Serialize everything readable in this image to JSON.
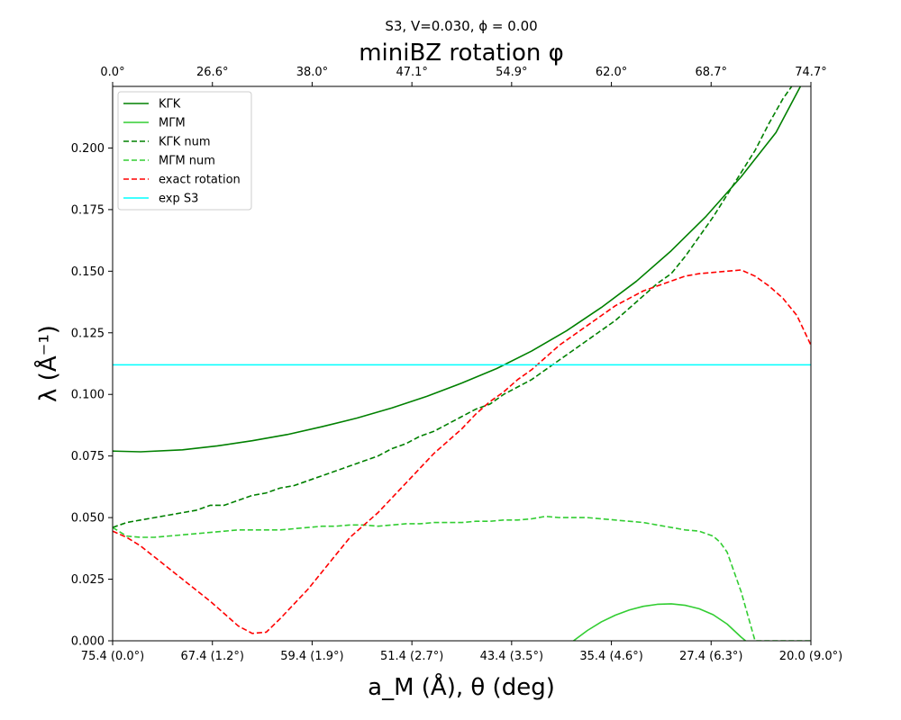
{
  "chart_data": {
    "type": "line",
    "suptitle": "S3, V=0.030, ϕ = 0.00",
    "title": "miniBZ rotation φ",
    "xlabel": "a_M (Å), θ (deg)",
    "ylabel": "λ (Å⁻¹)",
    "xlim": [
      0,
      100
    ],
    "ylim": [
      0,
      0.225
    ],
    "grid": false,
    "legend_position": "top-left",
    "x_ticks": [
      {
        "pos": 0,
        "label": "75.4 (0.0°)"
      },
      {
        "pos": 14.29,
        "label": "67.4 (1.2°)"
      },
      {
        "pos": 28.57,
        "label": "59.4 (1.9°)"
      },
      {
        "pos": 42.86,
        "label": "51.4 (2.7°)"
      },
      {
        "pos": 57.14,
        "label": "43.4 (3.5°)"
      },
      {
        "pos": 71.43,
        "label": "35.4 (4.6°)"
      },
      {
        "pos": 85.71,
        "label": "27.4 (6.3°)"
      },
      {
        "pos": 100,
        "label": "20.0 (9.0°)"
      }
    ],
    "top_ticks": [
      {
        "pos": 0,
        "label": "0.0°"
      },
      {
        "pos": 14.29,
        "label": "26.6°"
      },
      {
        "pos": 28.57,
        "label": "38.0°"
      },
      {
        "pos": 42.86,
        "label": "47.1°"
      },
      {
        "pos": 57.14,
        "label": "54.9°"
      },
      {
        "pos": 71.43,
        "label": "62.0°"
      },
      {
        "pos": 85.71,
        "label": "68.7°"
      },
      {
        "pos": 100,
        "label": "74.7°"
      }
    ],
    "y_ticks": [
      {
        "value": 0.0,
        "label": "0.000"
      },
      {
        "value": 0.025,
        "label": "0.025"
      },
      {
        "value": 0.05,
        "label": "0.050"
      },
      {
        "value": 0.075,
        "label": "0.075"
      },
      {
        "value": 0.1,
        "label": "0.100"
      },
      {
        "value": 0.125,
        "label": "0.125"
      },
      {
        "value": 0.15,
        "label": "0.150"
      },
      {
        "value": 0.175,
        "label": "0.175"
      },
      {
        "value": 0.2,
        "label": "0.200"
      }
    ],
    "series": [
      {
        "name": "KΓK",
        "color": "#008000",
        "style": "solid",
        "x": [
          0,
          4,
          10,
          15,
          20,
          25,
          30,
          35,
          40,
          45,
          50,
          55,
          60,
          65,
          70,
          75,
          80,
          85,
          90,
          95,
          98.5
        ],
        "y": [
          0.077,
          0.0767,
          0.0775,
          0.0791,
          0.0812,
          0.0837,
          0.0869,
          0.0904,
          0.0945,
          0.0992,
          0.1046,
          0.1105,
          0.1176,
          0.1258,
          0.1353,
          0.1459,
          0.1583,
          0.1723,
          0.1883,
          0.2063,
          0.225
        ]
      },
      {
        "name": "MΓM",
        "color": "#32cd32",
        "style": "solid",
        "x": [
          66,
          68,
          70,
          72,
          74,
          76,
          78,
          80,
          82,
          84,
          86,
          88,
          90,
          91.5
        ],
        "y": [
          0.0,
          0.0042,
          0.0077,
          0.0104,
          0.0125,
          0.014,
          0.0148,
          0.015,
          0.0144,
          0.013,
          0.0106,
          0.0068,
          0.0015,
          -0.002
        ]
      },
      {
        "name": "KΓK num",
        "color": "#008000",
        "style": "dashed",
        "x": [
          0,
          2,
          4,
          6,
          8,
          10,
          12,
          14,
          16,
          18,
          20,
          22,
          24,
          26,
          28,
          30,
          32,
          34,
          36,
          38,
          40,
          42,
          44,
          46,
          48,
          50,
          52,
          54,
          56,
          58,
          60,
          62,
          64,
          66,
          68,
          70,
          72,
          74,
          76,
          78,
          80,
          82,
          84,
          86,
          88,
          90,
          92,
          94,
          96,
          98,
          98.5
        ],
        "y": [
          0.046,
          0.048,
          0.049,
          0.05,
          0.051,
          0.052,
          0.053,
          0.055,
          0.055,
          0.057,
          0.059,
          0.06,
          0.062,
          0.063,
          0.065,
          0.067,
          0.069,
          0.071,
          0.073,
          0.075,
          0.078,
          0.08,
          0.083,
          0.085,
          0.088,
          0.091,
          0.094,
          0.096,
          0.1,
          0.103,
          0.106,
          0.11,
          0.114,
          0.118,
          0.122,
          0.126,
          0.13,
          0.135,
          0.14,
          0.145,
          0.149,
          0.156,
          0.164,
          0.172,
          0.181,
          0.19,
          0.199,
          0.21,
          0.22,
          0.228,
          0.23
        ]
      },
      {
        "name": "MΓM num",
        "color": "#32cd32",
        "style": "dashed",
        "x": [
          0,
          2,
          4,
          6,
          8,
          10,
          12,
          14,
          16,
          18,
          20,
          22,
          24,
          26,
          28,
          30,
          32,
          34,
          36,
          38,
          40,
          42,
          44,
          46,
          48,
          50,
          52,
          54,
          56,
          58,
          60,
          62,
          64,
          66,
          68,
          70,
          72,
          74,
          76,
          78,
          80,
          82,
          84,
          86,
          87,
          88,
          89,
          90,
          91,
          92,
          94,
          96,
          98,
          100
        ],
        "y": [
          0.046,
          0.0425,
          0.042,
          0.042,
          0.0425,
          0.043,
          0.0435,
          0.044,
          0.0445,
          0.045,
          0.045,
          0.045,
          0.045,
          0.0455,
          0.046,
          0.0465,
          0.0465,
          0.047,
          0.047,
          0.0465,
          0.047,
          0.0475,
          0.0475,
          0.048,
          0.048,
          0.048,
          0.0485,
          0.0485,
          0.049,
          0.049,
          0.0495,
          0.0505,
          0.05,
          0.05,
          0.05,
          0.0495,
          0.049,
          0.0485,
          0.048,
          0.047,
          0.046,
          0.045,
          0.0445,
          0.0425,
          0.04,
          0.036,
          0.028,
          0.02,
          0.01,
          0.0,
          0.0,
          0.0,
          0.0,
          0.0
        ]
      },
      {
        "name": "exact rotation",
        "color": "#ff0000",
        "style": "dashed",
        "x": [
          0,
          2,
          4,
          6,
          8,
          10,
          12,
          14,
          16,
          18,
          20,
          22,
          24,
          26,
          28,
          30,
          32,
          34,
          36,
          38,
          40,
          42,
          44,
          46,
          48,
          50,
          52,
          54,
          56,
          58,
          60,
          62,
          64,
          66,
          68,
          70,
          72,
          74,
          76,
          78,
          80,
          82,
          84,
          86,
          88,
          90,
          92,
          94,
          96,
          98,
          100
        ],
        "y": [
          0.0445,
          0.042,
          0.0385,
          0.034,
          0.0295,
          0.025,
          0.0205,
          0.016,
          0.011,
          0.006,
          0.003,
          0.0035,
          0.009,
          0.015,
          0.021,
          0.028,
          0.035,
          0.042,
          0.047,
          0.052,
          0.058,
          0.064,
          0.07,
          0.076,
          0.081,
          0.086,
          0.092,
          0.097,
          0.101,
          0.106,
          0.11,
          0.115,
          0.12,
          0.124,
          0.128,
          0.132,
          0.136,
          0.139,
          0.142,
          0.144,
          0.146,
          0.148,
          0.149,
          0.1495,
          0.15,
          0.1505,
          0.148,
          0.144,
          0.139,
          0.132,
          0.12
        ]
      },
      {
        "name": "exp S3",
        "color": "#00ffff",
        "style": "solid",
        "x": [
          0,
          100
        ],
        "y": [
          0.112,
          0.112
        ]
      }
    ]
  }
}
